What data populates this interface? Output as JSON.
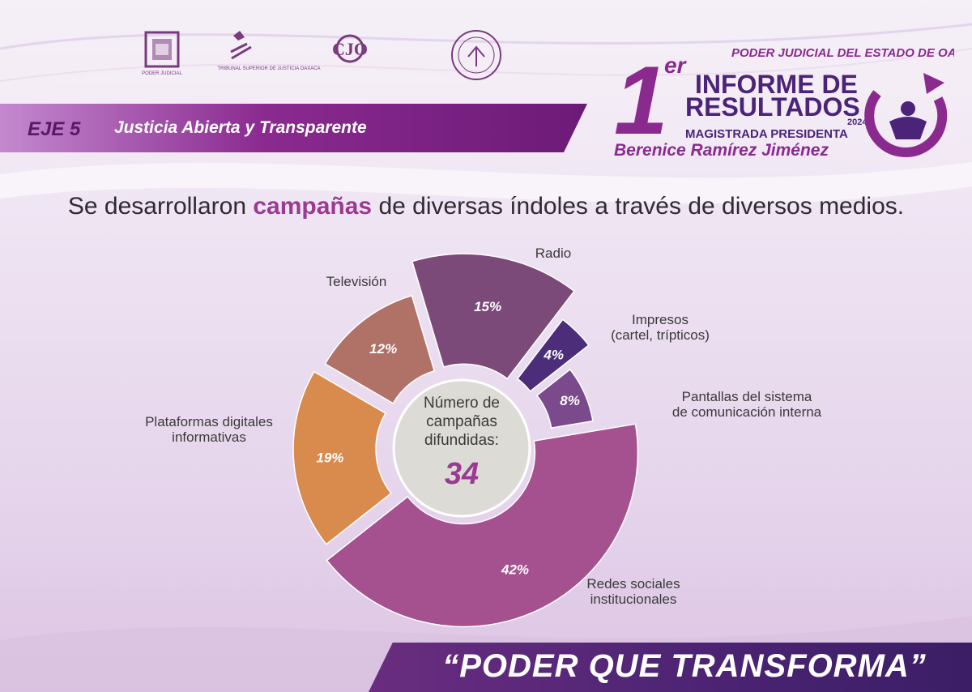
{
  "header": {
    "eje_number": "EJE 5",
    "eje_title": "Justicia Abierta y Transparente",
    "logos": [
      {
        "name": "poder-judicial-logo",
        "text": "PODER JUDICIAL"
      },
      {
        "name": "tribunal-superior-logo",
        "text": "TRIBUNAL SUPERIOR DE JUSTICIA OAXACA"
      },
      {
        "name": "cjo-logo",
        "text": "CJO"
      },
      {
        "name": "organo-logo",
        "text": ""
      }
    ],
    "informe": {
      "institution": "PODER JUDICIAL DEL ESTADO DE OAXACA",
      "ordinal_number": "1",
      "ordinal_suffix": "er",
      "line1": "INFORME DE",
      "line2": "RESULTADOS",
      "year": "2024",
      "role": "MAGISTRADA PRESIDENTA",
      "name": "Berenice Ramírez Jiménez"
    }
  },
  "lead": {
    "before": "Se desarrollaron ",
    "highlight": "campañas",
    "after": " de diversas índoles a través de diversos medios."
  },
  "chart_data": {
    "type": "pie",
    "style": "exploded-donut-varying-radius",
    "center_text": [
      "Número de",
      "campañas",
      "difundidas:"
    ],
    "center_value": "34",
    "slices": [
      {
        "category": "Radio",
        "label_lines": [
          "Radio"
        ],
        "value": 15,
        "value_label": "15%",
        "color": "#7b4a79"
      },
      {
        "category": "Impresos (cartel, trípticos)",
        "label_lines": [
          "Impresos",
          "(cartel, trípticos)"
        ],
        "value": 4,
        "value_label": "4%",
        "color": "#4b2d79"
      },
      {
        "category": "Pantallas del sistema de comunicación interna",
        "label_lines": [
          "Pantallas del sistema",
          "de comunicación interna"
        ],
        "value": 8,
        "value_label": "8%",
        "color": "#7a4a8c"
      },
      {
        "category": "Redes sociales institucionales",
        "label_lines": [
          "Redes sociales",
          "institucionales"
        ],
        "value": 42,
        "value_label": "42%",
        "color": "#a6518f"
      },
      {
        "category": "Plataformas digitales informativas",
        "label_lines": [
          "Plataformas digitales",
          "informativas"
        ],
        "value": 19,
        "value_label": "19%",
        "color": "#d98a4d"
      },
      {
        "category": "Televisión",
        "label_lines": [
          "Televisión"
        ],
        "value": 12,
        "value_label": "12%",
        "color": "#b07166"
      }
    ],
    "center_color": "#dddbd5",
    "value_label_color": "#ffffff",
    "center_value_color": "#9a3a91"
  },
  "footer": {
    "slogan": "“PODER QUE TRANSFORMA”"
  }
}
